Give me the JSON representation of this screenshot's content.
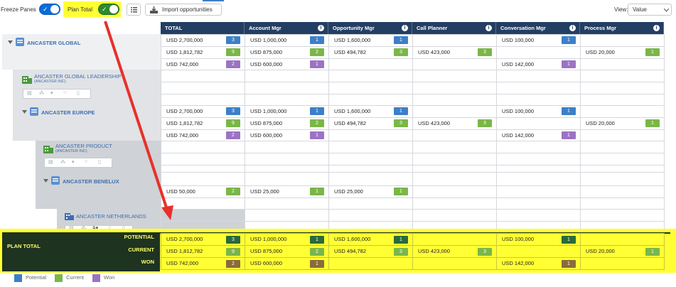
{
  "toolbar": {
    "freeze_label": "Freeze Panes",
    "plan_total_label": "Plan Total",
    "import_label": "Import opportunities",
    "view_label": "View:",
    "view_value": "Value"
  },
  "headers": [
    "TOTAL",
    "Account Mgr",
    "Opportunity Mgr",
    "Call Planner",
    "Conversation Mgr",
    "Process Mgr"
  ],
  "accounts": {
    "global": "ANCASTER GLOBAL",
    "leadership": "ANCASTER GLOBAL LEADERSHIP",
    "leadership_sub": "(ANCASTER INC)",
    "europe": "ANCASTER EUROPE",
    "product": "ANCASTER PRODUCT",
    "product_sub": "(ANCASTER INC)",
    "benelux": "ANCASTER BENELUX",
    "netherlands": "ANCASTER NETHERLANDS"
  },
  "rows": [
    {
      "cells": [
        [
          "USD 2,700,000",
          "3"
        ],
        [
          "USD 1,000,000",
          "1"
        ],
        [
          "USD 1,600,000",
          "1"
        ],
        [
          "",
          ""
        ],
        [
          "USD 100,000",
          "1"
        ],
        [
          "",
          ""
        ]
      ]
    },
    {
      "cells": [
        [
          "USD 1,812,782",
          "9"
        ],
        [
          "USD 875,000",
          "2"
        ],
        [
          "USD 494,782",
          "3"
        ],
        [
          "USD 423,000",
          "3"
        ],
        [
          "",
          ""
        ],
        [
          "USD 20,000",
          "1"
        ]
      ]
    },
    {
      "cells": [
        [
          "USD 742,000",
          "2"
        ],
        [
          "USD 600,000",
          "1"
        ],
        [
          "",
          ""
        ],
        [
          "",
          ""
        ],
        [
          "USD 142,000",
          "1"
        ],
        [
          "",
          ""
        ]
      ]
    },
    {
      "cells": [
        [
          "USD 2,700,000",
          "3"
        ],
        [
          "USD 1,000,000",
          "1"
        ],
        [
          "USD 1,600,000",
          "1"
        ],
        [
          "",
          ""
        ],
        [
          "USD 100,000",
          "1"
        ],
        [
          "",
          ""
        ]
      ]
    },
    {
      "cells": [
        [
          "USD 1,812,782",
          "9"
        ],
        [
          "USD 875,000",
          "2"
        ],
        [
          "USD 494,782",
          "3"
        ],
        [
          "USD 423,000",
          "3"
        ],
        [
          "",
          ""
        ],
        [
          "USD 20,000",
          "1"
        ]
      ]
    },
    {
      "cells": [
        [
          "USD 742,000",
          "2"
        ],
        [
          "USD 600,000",
          "1"
        ],
        [
          "",
          ""
        ],
        [
          "",
          ""
        ],
        [
          "USD 142,000",
          "1"
        ],
        [
          "",
          ""
        ]
      ]
    },
    {
      "cells": [
        [
          "USD 50,000",
          "2"
        ],
        [
          "USD 25,000",
          "1"
        ],
        [
          "USD 25,000",
          "1"
        ],
        [
          "",
          ""
        ],
        [
          "",
          ""
        ],
        [
          "",
          ""
        ]
      ]
    }
  ],
  "plan_total": {
    "label": "PLAN TOTAL",
    "row_labels": [
      "POTENTIAL",
      "CURRENT",
      "WON"
    ],
    "rows": [
      [
        [
          "USD 2,700,000",
          "3"
        ],
        [
          "USD 1,000,000",
          "1"
        ],
        [
          "USD 1,600,000",
          "1"
        ],
        [
          "",
          ""
        ],
        [
          "USD 100,000",
          "1"
        ],
        [
          "",
          ""
        ]
      ],
      [
        [
          "USD 1,812,782",
          "9"
        ],
        [
          "USD 875,000",
          "2"
        ],
        [
          "USD 494,782",
          "3"
        ],
        [
          "USD 423,000",
          "3"
        ],
        [
          "",
          ""
        ],
        [
          "USD 20,000",
          "1"
        ]
      ],
      [
        [
          "USD 742,000",
          "2"
        ],
        [
          "USD 600,000",
          "1"
        ],
        [
          "",
          ""
        ],
        [
          "",
          ""
        ],
        [
          "USD 142,000",
          "1"
        ],
        [
          "",
          ""
        ]
      ]
    ]
  },
  "legend": [
    "Potential",
    "Current",
    "Won"
  ],
  "colors": {
    "potential": "#3d7fc7",
    "current": "#7ab648",
    "won": "#9b73c3",
    "header": "#233e63",
    "highlight": "#ffff33",
    "arrow": "#e8302a"
  }
}
